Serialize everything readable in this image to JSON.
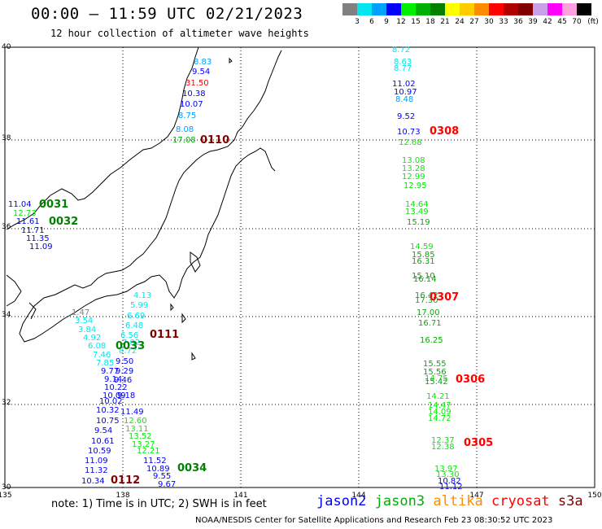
{
  "header": {
    "title": "00:00 – 11:59 UTC 02/21/2023",
    "subtitle": "12 hour collection of altimeter wave heights"
  },
  "legend": {
    "unit": "(ft)",
    "bins": [
      {
        "label": "3",
        "color": "#808080"
      },
      {
        "label": "6",
        "color": "#00e5ee"
      },
      {
        "label": "9",
        "color": "#00a0ff"
      },
      {
        "label": "12",
        "color": "#0000ff"
      },
      {
        "label": "15",
        "color": "#00ee00"
      },
      {
        "label": "18",
        "color": "#00b000"
      },
      {
        "label": "21",
        "color": "#008000"
      },
      {
        "label": "24",
        "color": "#ffff00"
      },
      {
        "label": "27",
        "color": "#ffcc00"
      },
      {
        "label": "30",
        "color": "#ff8c00"
      },
      {
        "label": "33",
        "color": "#ff0000"
      },
      {
        "label": "36",
        "color": "#b00000"
      },
      {
        "label": "39",
        "color": "#800000"
      },
      {
        "label": "42",
        "color": "#c8a0e6"
      },
      {
        "label": "45",
        "color": "#ff00ff"
      },
      {
        "label": "70",
        "color": "#ffa0dc"
      },
      {
        "label": "",
        "color": "#000000"
      }
    ]
  },
  "axes": {
    "lon_ticks": [
      "135",
      "138",
      "141",
      "144",
      "147",
      "150"
    ],
    "lat_ticks": [
      "30",
      "32",
      "34",
      "36",
      "38",
      "40"
    ]
  },
  "track_labels": [
    {
      "text": "0110",
      "color": "#800000"
    },
    {
      "text": "0031",
      "color": "#008000"
    },
    {
      "text": "0032",
      "color": "#008000"
    },
    {
      "text": "0111",
      "color": "#800000"
    },
    {
      "text": "0033",
      "color": "#008000"
    },
    {
      "text": "0034",
      "color": "#008000"
    },
    {
      "text": "0112",
      "color": "#800000"
    },
    {
      "text": "0308",
      "color": "#ff0000"
    },
    {
      "text": "0307",
      "color": "#ff0000"
    },
    {
      "text": "0306",
      "color": "#ff0000"
    },
    {
      "text": "0305",
      "color": "#ff0000"
    }
  ],
  "wave_values": [
    {
      "text": "8.83",
      "color": "#00a0ff"
    },
    {
      "text": "9.54",
      "color": "#0000ff"
    },
    {
      "text": "31.50",
      "color": "#ff0000"
    },
    {
      "text": "10.38",
      "color": "#0000ff"
    },
    {
      "text": "10.07",
      "color": "#0000ff"
    },
    {
      "text": "8.75",
      "color": "#00a0ff"
    },
    {
      "text": "8.08",
      "color": "#00a0ff"
    },
    {
      "text": "17.08",
      "color": "#00b000"
    },
    {
      "text": "11.04",
      "color": "#0000ff"
    },
    {
      "text": "12.73",
      "color": "#00ee00"
    },
    {
      "text": "11.61",
      "color": "#0000ff"
    },
    {
      "text": "11.71",
      "color": "#0000ff"
    },
    {
      "text": "11.35",
      "color": "#0000ff"
    },
    {
      "text": "11.09",
      "color": "#0000ff"
    },
    {
      "text": "1.47",
      "color": "#808080"
    },
    {
      "text": "3.54",
      "color": "#00e5ee"
    },
    {
      "text": "3.84",
      "color": "#00e5ee"
    },
    {
      "text": "4.92",
      "color": "#00e5ee"
    },
    {
      "text": "6.08",
      "color": "#00e5ee"
    },
    {
      "text": "7.46",
      "color": "#00e5ee"
    },
    {
      "text": "7.85",
      "color": "#00e5ee"
    },
    {
      "text": "9.77",
      "color": "#0000ff"
    },
    {
      "text": "9.14",
      "color": "#0000ff"
    },
    {
      "text": "10.22",
      "color": "#0000ff"
    },
    {
      "text": "10.09",
      "color": "#0000ff"
    },
    {
      "text": "10.02",
      "color": "#0000ff"
    },
    {
      "text": "10.32",
      "color": "#0000ff"
    },
    {
      "text": "10.75",
      "color": "#0000ff"
    },
    {
      "text": "9.54",
      "color": "#0000ff"
    },
    {
      "text": "10.61",
      "color": "#0000ff"
    },
    {
      "text": "10.59",
      "color": "#0000ff"
    },
    {
      "text": "11.09",
      "color": "#0000ff"
    },
    {
      "text": "11.32",
      "color": "#0000ff"
    },
    {
      "text": "10.34",
      "color": "#0000ff"
    },
    {
      "text": "4.13",
      "color": "#00e5ee"
    },
    {
      "text": "5.99",
      "color": "#00e5ee"
    },
    {
      "text": "6.69",
      "color": "#00e5ee"
    },
    {
      "text": "6.48",
      "color": "#00e5ee"
    },
    {
      "text": "6.56",
      "color": "#00e5ee"
    },
    {
      "text": "7.02",
      "color": "#00e5ee"
    },
    {
      "text": "8.72",
      "color": "#00e5ee"
    },
    {
      "text": "9.50",
      "color": "#0000ff"
    },
    {
      "text": "9.29",
      "color": "#0000ff"
    },
    {
      "text": "9.46",
      "color": "#0000ff"
    },
    {
      "text": "9.18",
      "color": "#0000ff"
    },
    {
      "text": "11.49",
      "color": "#0000ff"
    },
    {
      "text": "12.60",
      "color": "#00ee00"
    },
    {
      "text": "13.11",
      "color": "#00ee00"
    },
    {
      "text": "13.52",
      "color": "#00ee00"
    },
    {
      "text": "13.27",
      "color": "#00ee00"
    },
    {
      "text": "12.21",
      "color": "#00ee00"
    },
    {
      "text": "11.52",
      "color": "#0000ff"
    },
    {
      "text": "10.89",
      "color": "#0000ff"
    },
    {
      "text": "9.55",
      "color": "#0000ff"
    },
    {
      "text": "9.67",
      "color": "#0000ff"
    },
    {
      "text": "8.72",
      "color": "#00e5ee"
    },
    {
      "text": "8.63",
      "color": "#00e5ee"
    },
    {
      "text": "8.77",
      "color": "#00e5ee"
    },
    {
      "text": "11.02",
      "color": "#0000ff"
    },
    {
      "text": "10.97",
      "color": "#0000ff"
    },
    {
      "text": "8.48",
      "color": "#00a0ff"
    },
    {
      "text": "9.52",
      "color": "#0000ff"
    },
    {
      "text": "10.73",
      "color": "#0000ff"
    },
    {
      "text": "12.68",
      "color": "#00ee00"
    },
    {
      "text": "13.08",
      "color": "#00ee00"
    },
    {
      "text": "13.28",
      "color": "#00ee00"
    },
    {
      "text": "12.99",
      "color": "#00ee00"
    },
    {
      "text": "12.95",
      "color": "#00ee00"
    },
    {
      "text": "14.64",
      "color": "#00ee00"
    },
    {
      "text": "13.49",
      "color": "#00ee00"
    },
    {
      "text": "15.19",
      "color": "#00b000"
    },
    {
      "text": "14.59",
      "color": "#00ee00"
    },
    {
      "text": "15.85",
      "color": "#00b000"
    },
    {
      "text": "16.31",
      "color": "#00b000"
    },
    {
      "text": "15.10",
      "color": "#00b000"
    },
    {
      "text": "16.14",
      "color": "#00b000"
    },
    {
      "text": "16.42",
      "color": "#00b000"
    },
    {
      "text": "17.30",
      "color": "#00b000"
    },
    {
      "text": "17.00",
      "color": "#00b000"
    },
    {
      "text": "16.71",
      "color": "#00b000"
    },
    {
      "text": "16.25",
      "color": "#00b000"
    },
    {
      "text": "15.55",
      "color": "#00b000"
    },
    {
      "text": "15.56",
      "color": "#00b000"
    },
    {
      "text": "14.75",
      "color": "#00ee00"
    },
    {
      "text": "15.42",
      "color": "#00b000"
    },
    {
      "text": "14.21",
      "color": "#00ee00"
    },
    {
      "text": "14.47",
      "color": "#00ee00"
    },
    {
      "text": "14.09",
      "color": "#00ee00"
    },
    {
      "text": "14.72",
      "color": "#00ee00"
    },
    {
      "text": "12.37",
      "color": "#00ee00"
    },
    {
      "text": "12.38",
      "color": "#00ee00"
    },
    {
      "text": "13.97",
      "color": "#00ee00"
    },
    {
      "text": "13.30",
      "color": "#00ee00"
    },
    {
      "text": "10.82",
      "color": "#0000ff"
    },
    {
      "text": "11.12",
      "color": "#0000ff"
    }
  ],
  "footer": {
    "note": "note: 1) Time is in UTC; 2) SWH is in feet",
    "satellites": [
      {
        "name": "jason2",
        "color": "#0000ff"
      },
      {
        "name": "jason3",
        "color": "#00b000"
      },
      {
        "name": "altika",
        "color": "#ff8c00"
      },
      {
        "name": "cryosat",
        "color": "#ff0000"
      },
      {
        "name": "s3a",
        "color": "#800000"
      }
    ],
    "credit": "NOAA/NESDIS Center for Satellite Applications and Research     Feb 23 08:30:52 UTC 2023"
  }
}
